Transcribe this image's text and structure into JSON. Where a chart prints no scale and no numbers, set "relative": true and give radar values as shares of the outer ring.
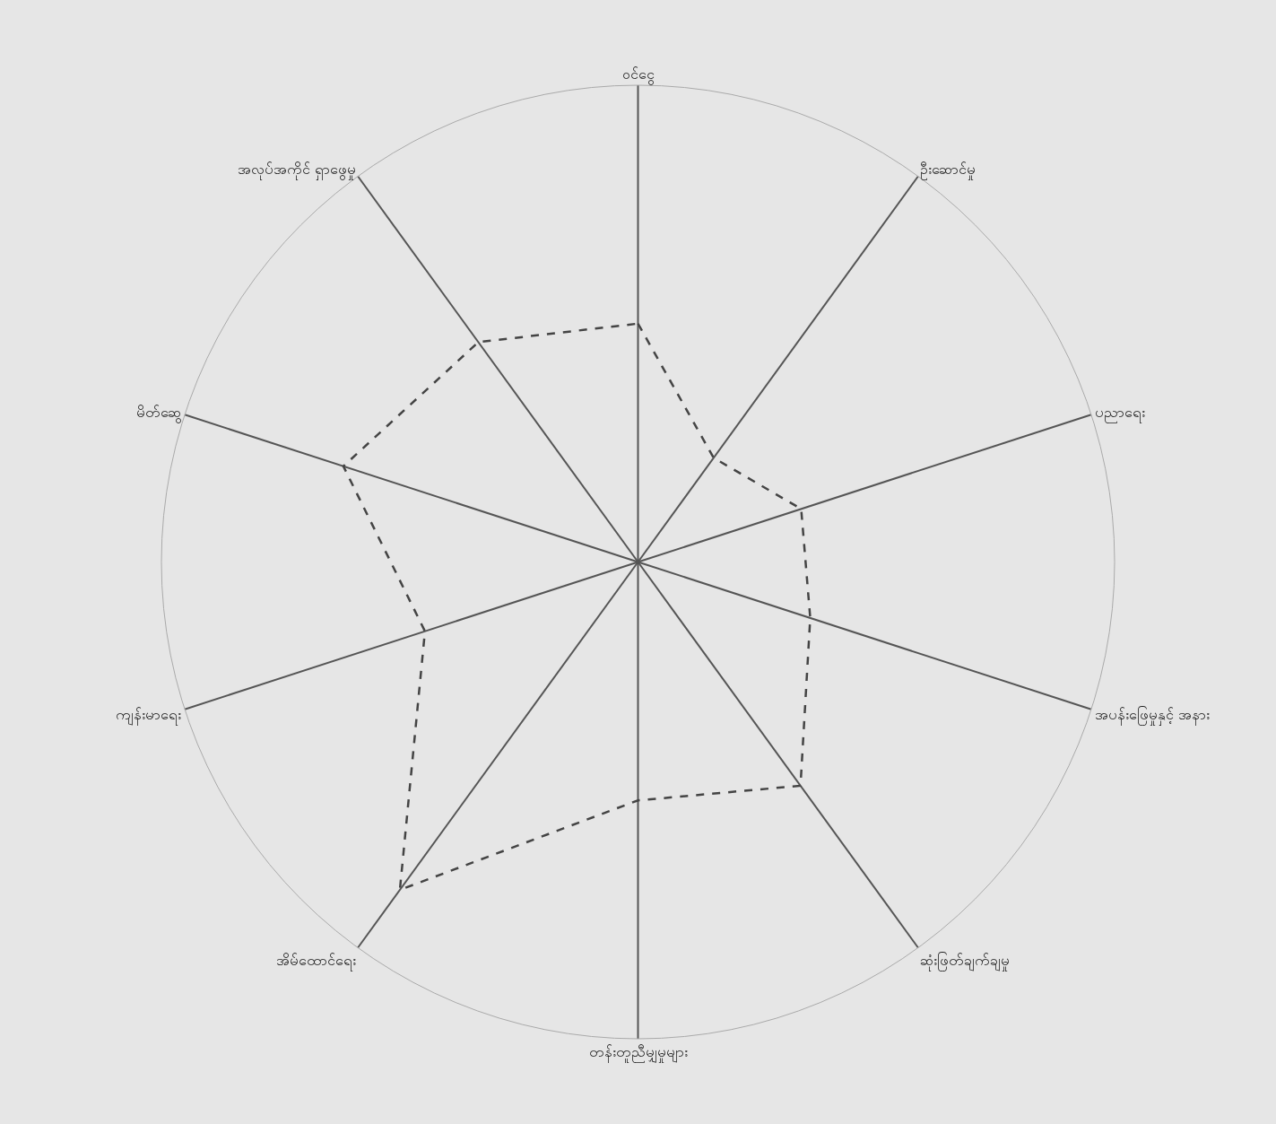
{
  "chart_data": {
    "type": "radar",
    "relative": true,
    "line_style": "dashed",
    "categories": [
      "ဝင်ငွေ",
      "ဦးဆောင်မှု",
      "ပညာရေး",
      "အပန်းဖြေမှုနှင့် အနား",
      "ဆုံးဖြတ်ချက်ချမှု",
      "တန်းတူညီမျှမှုများ",
      "အိမ်ထောင်ရေး",
      "ကျန်းမာရေး",
      "မိတ်ဆွေ",
      "အလုပ်အကိုင် ရှာဖွေမှု"
    ],
    "series": [
      {
        "color": "#444444",
        "values": [
          0.5,
          0.27,
          0.36,
          0.38,
          0.58,
          0.5,
          0.85,
          0.47,
          0.65,
          0.57
        ]
      }
    ]
  }
}
